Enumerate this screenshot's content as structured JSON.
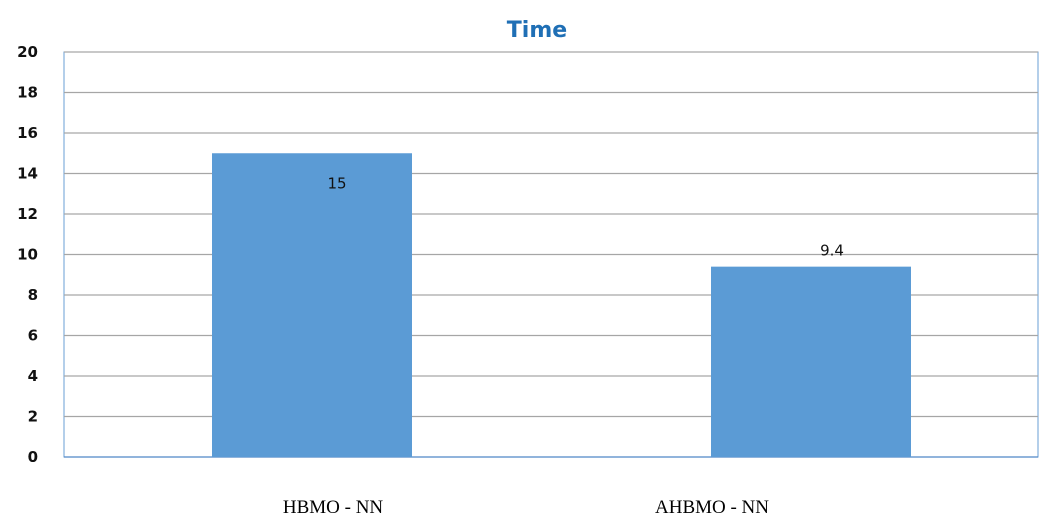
{
  "chart_data": {
    "type": "bar",
    "title": "Time",
    "categories": [
      "HBMO - NN",
      "AHBMO - NN"
    ],
    "values": [
      15,
      9.4
    ],
    "data_labels": [
      "15",
      "9.4"
    ],
    "ylim": [
      0,
      20
    ],
    "y_ticks": [
      0,
      2,
      4,
      6,
      8,
      10,
      12,
      14,
      16,
      18,
      20
    ],
    "xlabel": "",
    "ylabel": "",
    "grid": true,
    "legend": "none",
    "colors": {
      "bar": "#5b9bd5",
      "title": "#1f6fb5",
      "gridline": "#a6a6a6",
      "axis": "#4f86c6"
    }
  }
}
